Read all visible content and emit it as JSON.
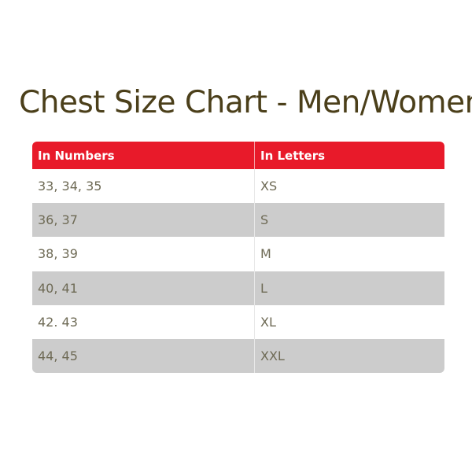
{
  "title": "Chest Size Chart - Men/Women",
  "colors": {
    "header": "#e81a2a",
    "title": "#4b3f1a",
    "stripe": "#cccccc"
  },
  "table": {
    "headers": [
      "In Numbers",
      "In Letters"
    ],
    "rows": [
      [
        "33, 34, 35",
        "XS"
      ],
      [
        "36, 37",
        "S"
      ],
      [
        "38, 39",
        "M"
      ],
      [
        "40, 41",
        "L"
      ],
      [
        "42. 43",
        "XL"
      ],
      [
        "44, 45",
        "XXL"
      ]
    ]
  }
}
